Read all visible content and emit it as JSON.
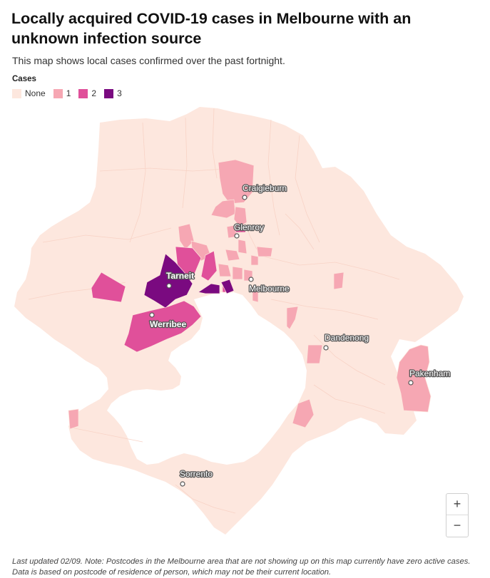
{
  "header": {
    "title": "Locally acquired COVID-19 cases in Melbourne with an unknown infection source",
    "subtitle": "This map shows local cases confirmed over the past fortnight."
  },
  "legend": {
    "title": "Cases",
    "items": [
      {
        "label": "None",
        "color": "#fde7de"
      },
      {
        "label": "1",
        "color": "#f6a7b3"
      },
      {
        "label": "2",
        "color": "#e0509a"
      },
      {
        "label": "3",
        "color": "#7a0a80"
      }
    ]
  },
  "map": {
    "base_color": "#fde7de",
    "cities": [
      {
        "name": "Craigieburn"
      },
      {
        "name": "Glenroy"
      },
      {
        "name": "Tarneit"
      },
      {
        "name": "Melbourne"
      },
      {
        "name": "Werribee"
      },
      {
        "name": "Dandenong"
      },
      {
        "name": "Pakenham"
      },
      {
        "name": "Sorrento"
      }
    ]
  },
  "zoom": {
    "in_label": "+",
    "out_label": "−"
  },
  "footnote": "Last updated 02/09. Note: Postcodes in the Melbourne area that are not showing up on this map currently have zero active cases. Data is based on postcode of residence of person, which may not be their current location."
}
